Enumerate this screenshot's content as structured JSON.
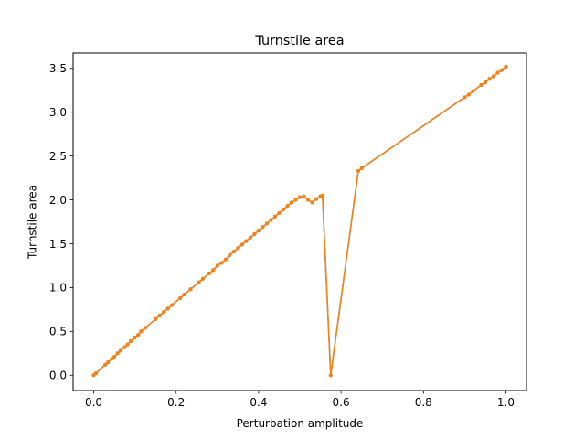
{
  "chart_data": {
    "type": "line",
    "title": "Turnstile area",
    "xlabel": "Perturbation amplitude",
    "ylabel": "Turnstile area",
    "xlim": [
      -0.05,
      1.05
    ],
    "ylim": [
      -0.175,
      3.675
    ],
    "xticks": [
      0.0,
      0.2,
      0.4,
      0.6,
      0.8,
      1.0
    ],
    "xtick_labels": [
      "0.0",
      "0.2",
      "0.4",
      "0.6",
      "0.8",
      "1.0"
    ],
    "yticks": [
      0.0,
      0.5,
      1.0,
      1.5,
      2.0,
      2.5,
      3.0,
      3.5
    ],
    "ytick_labels": [
      "0.0",
      "0.5",
      "1.0",
      "1.5",
      "2.0",
      "2.5",
      "3.0",
      "3.5"
    ],
    "grid": false,
    "legend": "none",
    "series": [
      {
        "line_color": "#1f77b4",
        "marker_color": "#1f77b4",
        "x": [
          0.0,
          0.005,
          0.028,
          0.035,
          0.045,
          0.05,
          0.058,
          0.065,
          0.075,
          0.082,
          0.09,
          0.1,
          0.108,
          0.115,
          0.125,
          0.15,
          0.16,
          0.17,
          0.18,
          0.19,
          0.21,
          0.22,
          0.235,
          0.255,
          0.265,
          0.28,
          0.29,
          0.3,
          0.31,
          0.32,
          0.33,
          0.34,
          0.35,
          0.36,
          0.37,
          0.38,
          0.39,
          0.4,
          0.41,
          0.42,
          0.43,
          0.44,
          0.45,
          0.46,
          0.47,
          0.48,
          0.49,
          0.5,
          0.51,
          0.52,
          0.53,
          0.54,
          0.55,
          0.555,
          0.575,
          0.642,
          0.65,
          0.9,
          0.91,
          0.92,
          0.94,
          0.95,
          0.96,
          0.97,
          0.98,
          0.99,
          1.0
        ],
        "y": [
          0.0,
          0.02,
          0.12,
          0.15,
          0.19,
          0.21,
          0.25,
          0.28,
          0.32,
          0.35,
          0.39,
          0.43,
          0.46,
          0.5,
          0.54,
          0.64,
          0.68,
          0.72,
          0.76,
          0.8,
          0.88,
          0.92,
          0.98,
          1.06,
          1.1,
          1.16,
          1.2,
          1.25,
          1.28,
          1.32,
          1.37,
          1.41,
          1.45,
          1.49,
          1.53,
          1.57,
          1.61,
          1.65,
          1.69,
          1.73,
          1.77,
          1.81,
          1.85,
          1.89,
          1.93,
          1.97,
          2.0,
          2.03,
          2.04,
          2.0,
          1.97,
          2.01,
          2.04,
          2.05,
          0.0,
          2.33,
          2.36,
          3.17,
          3.2,
          3.24,
          3.31,
          3.34,
          3.38,
          3.41,
          3.45,
          3.48,
          3.52
        ]
      },
      {
        "line_color": "#ff7f0e",
        "marker_color": "#ff7f0e",
        "x": [
          0.0,
          0.005,
          0.028,
          0.035,
          0.045,
          0.05,
          0.058,
          0.065,
          0.075,
          0.082,
          0.09,
          0.1,
          0.108,
          0.115,
          0.125,
          0.15,
          0.16,
          0.17,
          0.18,
          0.19,
          0.21,
          0.22,
          0.235,
          0.255,
          0.265,
          0.28,
          0.29,
          0.3,
          0.31,
          0.32,
          0.33,
          0.34,
          0.35,
          0.36,
          0.37,
          0.38,
          0.39,
          0.4,
          0.41,
          0.42,
          0.43,
          0.44,
          0.45,
          0.46,
          0.47,
          0.48,
          0.49,
          0.5,
          0.51,
          0.52,
          0.53,
          0.54,
          0.55,
          0.555,
          0.575,
          0.642,
          0.65,
          0.9,
          0.91,
          0.92,
          0.94,
          0.95,
          0.96,
          0.97,
          0.98,
          0.99,
          1.0
        ],
        "y": [
          0.0,
          0.02,
          0.12,
          0.15,
          0.19,
          0.21,
          0.25,
          0.28,
          0.32,
          0.35,
          0.39,
          0.43,
          0.46,
          0.5,
          0.54,
          0.64,
          0.68,
          0.72,
          0.76,
          0.8,
          0.88,
          0.92,
          0.98,
          1.06,
          1.1,
          1.16,
          1.2,
          1.25,
          1.28,
          1.32,
          1.37,
          1.41,
          1.45,
          1.49,
          1.53,
          1.57,
          1.61,
          1.65,
          1.69,
          1.73,
          1.77,
          1.81,
          1.85,
          1.89,
          1.93,
          1.97,
          2.0,
          2.03,
          2.04,
          2.0,
          1.97,
          2.01,
          2.04,
          2.05,
          0.0,
          2.33,
          2.36,
          3.17,
          3.2,
          3.24,
          3.31,
          3.34,
          3.38,
          3.41,
          3.45,
          3.48,
          3.52
        ]
      }
    ]
  }
}
